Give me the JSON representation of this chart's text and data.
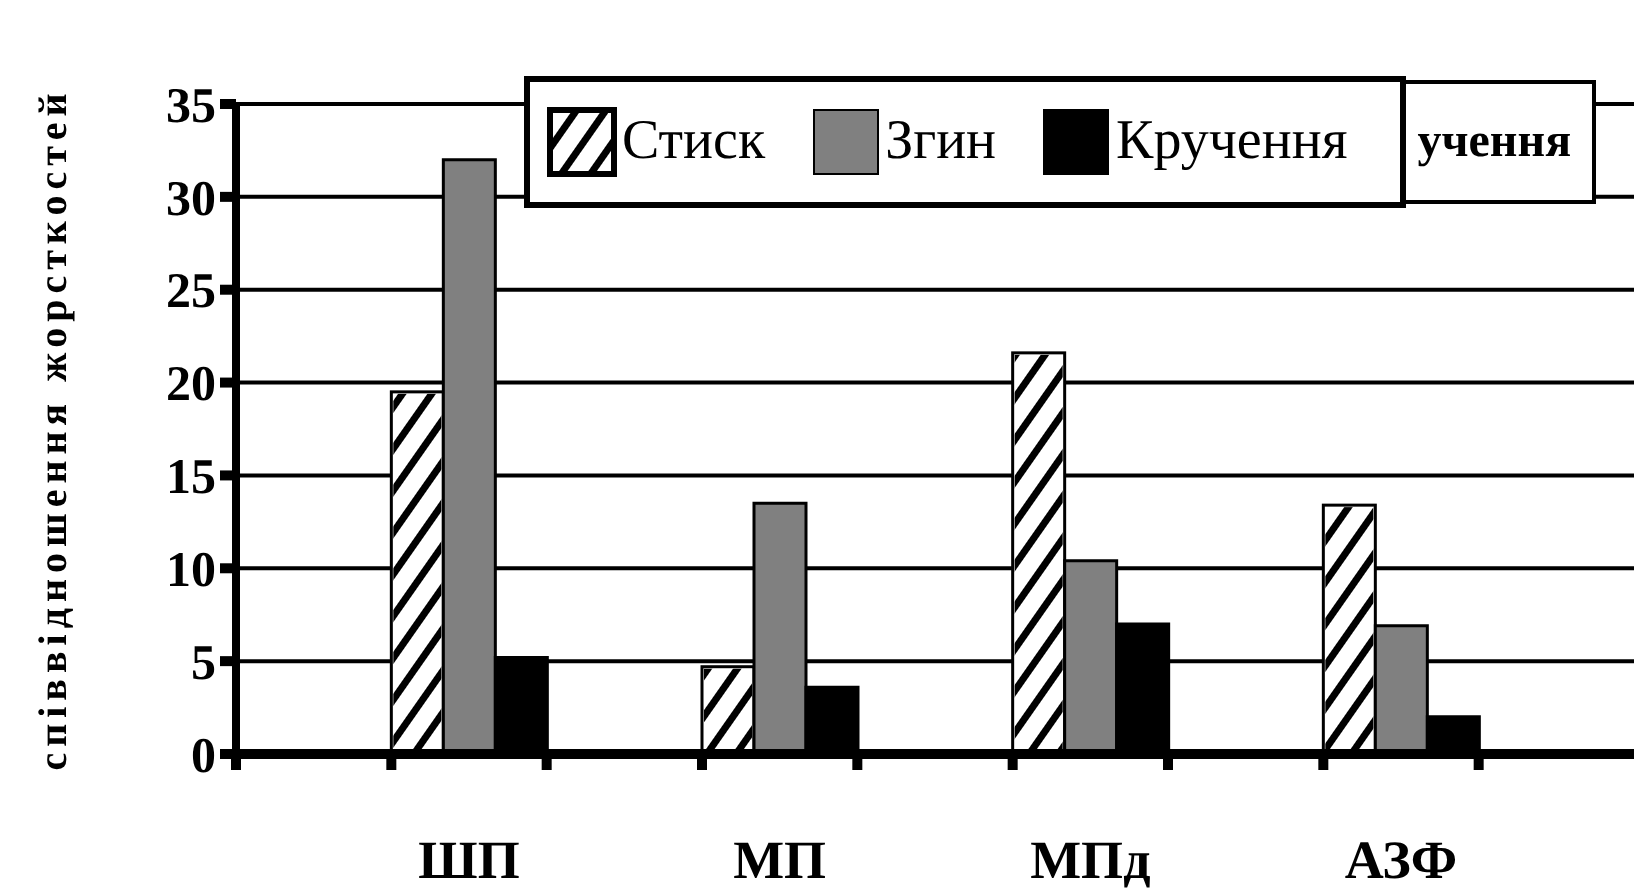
{
  "chart_data": {
    "type": "bar",
    "ylabel": "співвідношення жорсткостей",
    "annotations": [
      "учення"
    ],
    "categories": [
      null,
      "ШП",
      null,
      "МП",
      null,
      "МПд",
      null,
      "АЗФ",
      null
    ],
    "series": [
      {
        "name": "Стиск",
        "color": "#ffffff",
        "values": [
          null,
          19.5,
          null,
          4.7,
          null,
          21.6,
          null,
          13.4,
          null
        ]
      },
      {
        "name": "Згин",
        "color": "#808080",
        "values": [
          null,
          32,
          null,
          13.5,
          null,
          10.4,
          null,
          6.9,
          null
        ]
      },
      {
        "name": "Кручення",
        "color": "#000000",
        "values": [
          null,
          5.2,
          null,
          3.6,
          null,
          7.0,
          null,
          2.0,
          null
        ]
      }
    ],
    "ylim": [
      0,
      35
    ],
    "yticks": [
      0,
      5,
      10,
      15,
      20,
      25,
      30,
      35
    ],
    "grid": "y",
    "legend": "top"
  }
}
